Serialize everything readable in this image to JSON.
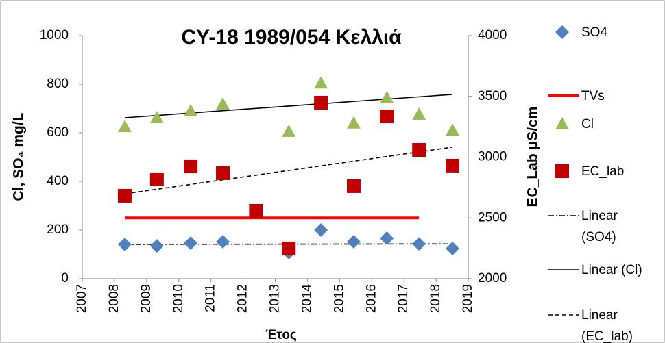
{
  "chart_data": {
    "type": "scatter",
    "title": "CY-18 1989/054 Κελλιά",
    "x_label": "Έτος",
    "y_label": "Cl, SO₄ mg/L",
    "y2_label": "EC_Lab μS/cm",
    "xlim": [
      2007,
      2019
    ],
    "xticks": [
      2007,
      2008,
      2009,
      2010,
      2011,
      2012,
      2013,
      2014,
      2015,
      2016,
      2017,
      2018,
      2019
    ],
    "ylim": [
      0,
      1000
    ],
    "yticks": [
      0,
      200,
      400,
      600,
      800,
      1000
    ],
    "y2lim": [
      2000,
      4000
    ],
    "y2ticks": [
      2000,
      2500,
      3000,
      3500,
      4000
    ],
    "series": [
      {
        "name": "SO4",
        "color": "#4f81bd",
        "marker": "diamond",
        "x": [
          2008.32,
          2009.32,
          2010.37,
          2011.37,
          2013.42,
          2014.42,
          2015.44,
          2016.47,
          2017.47,
          2018.51
        ],
        "values": [
          141,
          135,
          146,
          152,
          107,
          200,
          152,
          166,
          143,
          124
        ]
      },
      {
        "name": "TVs",
        "color": "#ff0000",
        "line": "solid",
        "x": [
          2008.32,
          2017.47
        ],
        "values": [
          250,
          250
        ]
      },
      {
        "name": "Cl",
        "color": "#9bbb59",
        "marker": "triangle",
        "x": [
          2008.32,
          2009.32,
          2010.37,
          2011.37,
          2013.42,
          2014.42,
          2015.44,
          2016.47,
          2017.47,
          2018.51
        ],
        "values": [
          625,
          662,
          690,
          718,
          606,
          805,
          640,
          744,
          676,
          611
        ]
      },
      {
        "name": "EC_lab",
        "color": "#c00000",
        "marker": "square",
        "axis": "y2",
        "x": [
          2008.32,
          2009.32,
          2010.37,
          2011.37,
          2012.4,
          2013.42,
          2014.42,
          2015.44,
          2016.47,
          2017.47,
          2018.51
        ],
        "values": [
          2682,
          2817,
          2924,
          2868,
          2558,
          2248,
          3448,
          2761,
          3335,
          3059,
          2930
        ]
      },
      {
        "name": "Linear (SO4)",
        "color": "#000000",
        "line": "dashdot",
        "x": [
          2008.32,
          2018.51
        ],
        "values": [
          141,
          143
        ]
      },
      {
        "name": "Linear (Cl)",
        "color": "#000000",
        "line": "solid",
        "x": [
          2008.32,
          2018.51
        ],
        "values": [
          662,
          758
        ]
      },
      {
        "name": "Linear (EC_lab)",
        "color": "#000000",
        "line": "dashed",
        "axis": "y2",
        "x": [
          2008.32,
          2018.51
        ],
        "values": [
          2698,
          3082
        ]
      }
    ]
  }
}
